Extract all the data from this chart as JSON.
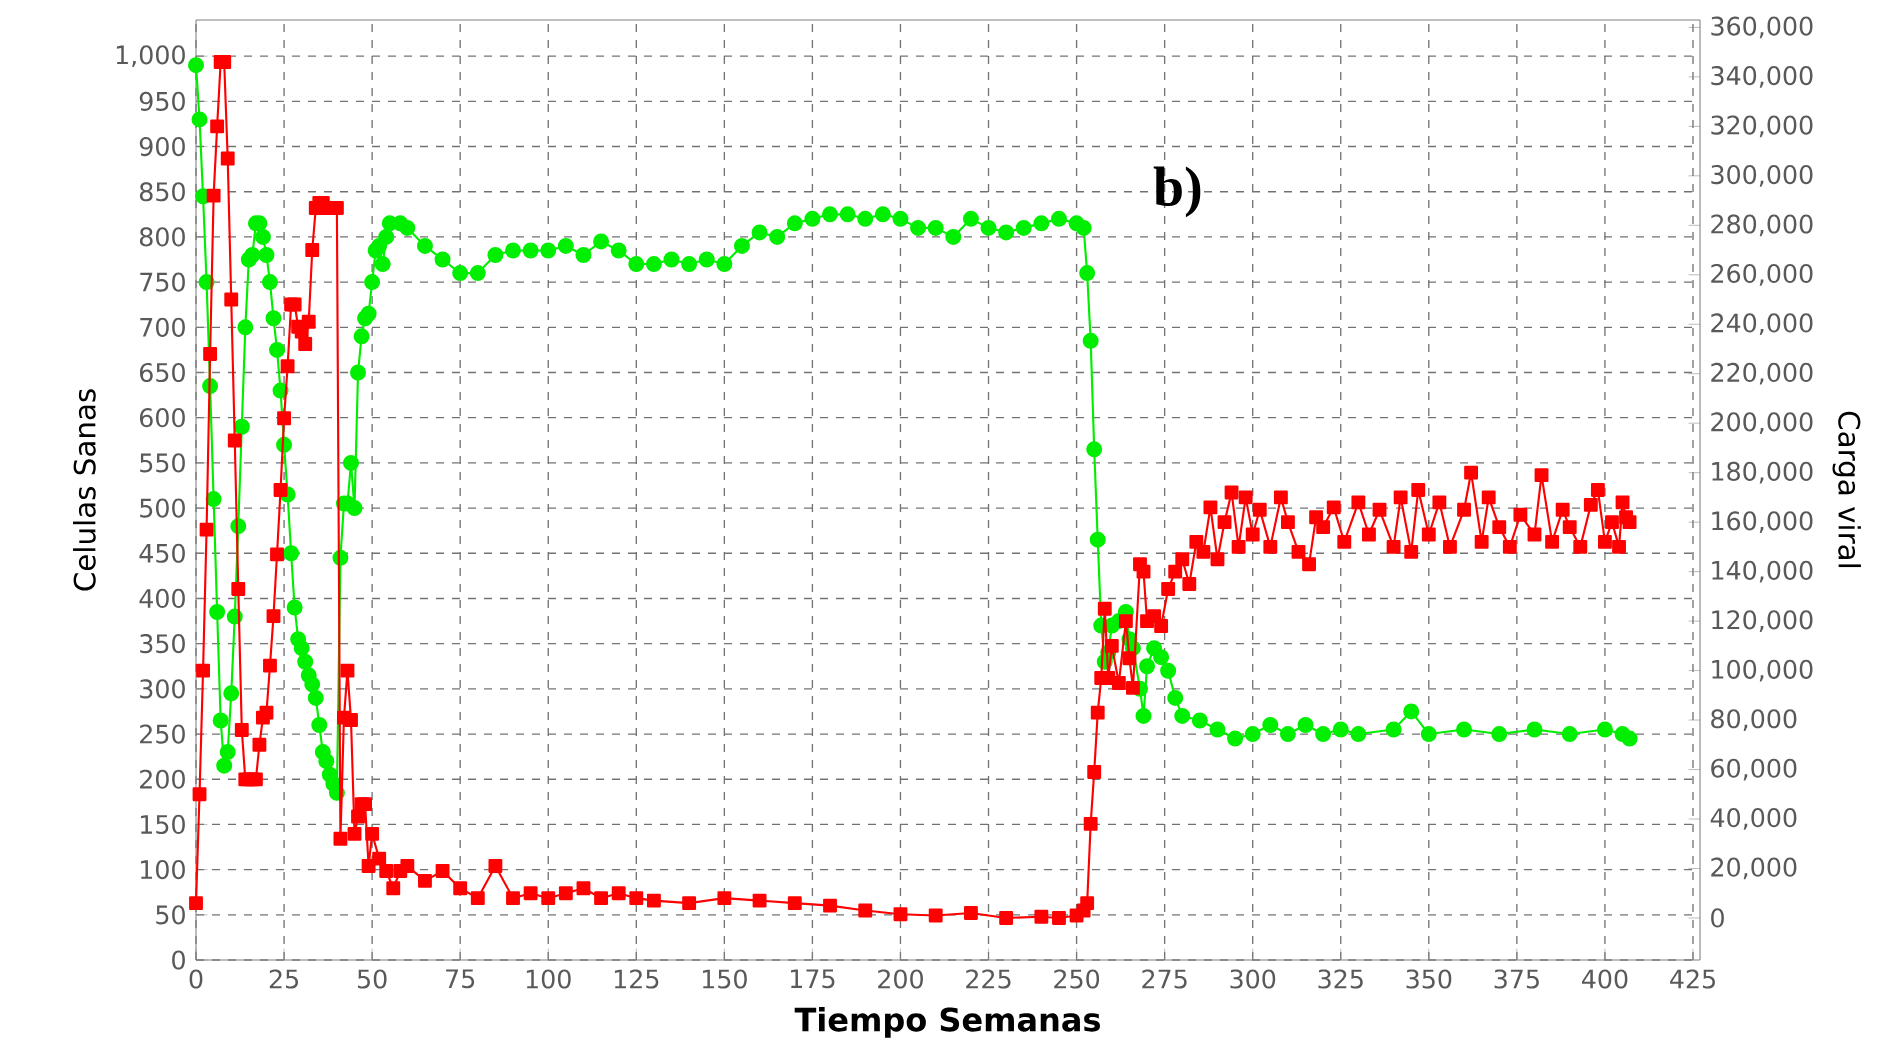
{
  "chart_data": {
    "type": "line",
    "xlabel": "Tiempo Semanas",
    "ylabel": "Celulas Sanas",
    "y2label": "Carga viral",
    "annotations": [
      "b)"
    ],
    "xlim": [
      0,
      427
    ],
    "xticks": [
      0,
      25,
      50,
      75,
      100,
      125,
      150,
      175,
      200,
      225,
      250,
      275,
      300,
      325,
      350,
      375,
      400,
      425
    ],
    "ylim": [
      0,
      1040
    ],
    "yticks": [
      0,
      50,
      100,
      150,
      200,
      250,
      300,
      350,
      400,
      450,
      500,
      550,
      600,
      650,
      700,
      750,
      800,
      850,
      900,
      950,
      {
        "value": 1000,
        "label": "1,000"
      }
    ],
    "y2lim": [
      -17000,
      363000
    ],
    "y2ticks": [
      0,
      {
        "value": 20000,
        "label": "20,000"
      },
      {
        "value": 40000,
        "label": "40,000"
      },
      {
        "value": 60000,
        "label": "60,000"
      },
      {
        "value": 80000,
        "label": "80,000"
      },
      {
        "value": 100000,
        "label": "100,000"
      },
      {
        "value": 120000,
        "label": "120,000"
      },
      {
        "value": 140000,
        "label": "140,000"
      },
      {
        "value": 160000,
        "label": "160,000"
      },
      {
        "value": 180000,
        "label": "180,000"
      },
      {
        "value": 200000,
        "label": "200,000"
      },
      {
        "value": 220000,
        "label": "220,000"
      },
      {
        "value": 240000,
        "label": "240,000"
      },
      {
        "value": 260000,
        "label": "260,000"
      },
      {
        "value": 280000,
        "label": "280,000"
      },
      {
        "value": 300000,
        "label": "300,000"
      },
      {
        "value": 320000,
        "label": "320,000"
      },
      {
        "value": 340000,
        "label": "340,000"
      },
      {
        "value": 360000,
        "label": "360,000"
      }
    ],
    "grid": true,
    "line_style": "solid",
    "series": [
      {
        "color": "#00ee00",
        "marker": "circle",
        "axis": "y",
        "x": [
          0,
          1,
          2,
          3,
          4,
          5,
          6,
          7,
          8,
          9,
          10,
          11,
          12,
          13,
          14,
          15,
          16,
          17,
          18,
          19,
          20,
          21,
          22,
          23,
          24,
          25,
          26,
          27,
          28,
          29,
          30,
          31,
          32,
          33,
          34,
          35,
          36,
          37,
          38,
          39,
          40,
          41,
          42,
          43,
          44,
          45,
          46,
          47,
          48,
          49,
          50,
          51,
          52,
          53,
          54,
          55,
          58,
          60,
          65,
          70,
          75,
          80,
          85,
          90,
          95,
          100,
          105,
          110,
          115,
          120,
          125,
          130,
          135,
          140,
          145,
          150,
          155,
          160,
          165,
          170,
          175,
          180,
          185,
          190,
          195,
          200,
          205,
          210,
          215,
          220,
          225,
          230,
          235,
          240,
          245,
          250,
          252,
          253,
          254,
          255,
          256,
          257,
          258,
          259,
          260,
          262,
          264,
          265,
          266,
          268,
          269,
          270,
          272,
          274,
          276,
          278,
          280,
          285,
          290,
          295,
          300,
          305,
          310,
          315,
          320,
          325,
          330,
          340,
          345,
          350,
          360,
          370,
          380,
          390,
          400,
          405,
          407
        ],
        "values": [
          990,
          930,
          845,
          750,
          635,
          510,
          385,
          265,
          215,
          230,
          295,
          380,
          480,
          590,
          700,
          775,
          780,
          815,
          815,
          800,
          780,
          750,
          710,
          675,
          630,
          570,
          515,
          450,
          390,
          355,
          345,
          330,
          315,
          305,
          290,
          260,
          230,
          220,
          205,
          195,
          185,
          445,
          505,
          505,
          550,
          500,
          650,
          690,
          710,
          715,
          750,
          785,
          790,
          770,
          800,
          815,
          815,
          810,
          790,
          775,
          760,
          760,
          780,
          785,
          785,
          785,
          790,
          780,
          795,
          785,
          770,
          770,
          775,
          770,
          775,
          770,
          790,
          805,
          800,
          815,
          820,
          825,
          825,
          820,
          825,
          820,
          810,
          810,
          800,
          820,
          810,
          805,
          810,
          815,
          820,
          815,
          810,
          760,
          685,
          565,
          465,
          370,
          330,
          340,
          370,
          375,
          385,
          355,
          345,
          300,
          270,
          325,
          345,
          335,
          320,
          290,
          270,
          265,
          255,
          245,
          250,
          260,
          250,
          260,
          250,
          255,
          250,
          255,
          275,
          250,
          255,
          250,
          255,
          250,
          255,
          250,
          245
        ]
      },
      {
        "color": "#ff0000",
        "marker": "square",
        "axis": "y2",
        "x": [
          0,
          1,
          2,
          3,
          4,
          5,
          6,
          7,
          8,
          9,
          10,
          11,
          12,
          13,
          14,
          15,
          16,
          17,
          18,
          19,
          20,
          21,
          22,
          23,
          24,
          25,
          26,
          27,
          28,
          29,
          30,
          31,
          32,
          33,
          34,
          35,
          36,
          37,
          38,
          39,
          40,
          41,
          42,
          43,
          44,
          45,
          46,
          47,
          48,
          49,
          50,
          52,
          54,
          56,
          58,
          60,
          65,
          70,
          75,
          80,
          85,
          90,
          95,
          100,
          105,
          110,
          115,
          120,
          125,
          130,
          140,
          150,
          160,
          170,
          180,
          190,
          200,
          210,
          220,
          230,
          240,
          245,
          250,
          252,
          253,
          254,
          255,
          256,
          257,
          258,
          259,
          260,
          262,
          264,
          265,
          266,
          268,
          269,
          270,
          272,
          274,
          276,
          278,
          280,
          282,
          284,
          286,
          288,
          290,
          292,
          294,
          296,
          298,
          300,
          302,
          305,
          308,
          310,
          313,
          316,
          318,
          320,
          323,
          326,
          330,
          333,
          336,
          340,
          342,
          345,
          347,
          350,
          353,
          356,
          360,
          362,
          365,
          367,
          370,
          373,
          376,
          380,
          382,
          385,
          388,
          390,
          393,
          396,
          398,
          400,
          402,
          404,
          405,
          406,
          407
        ],
        "values": [
          6000,
          50000,
          100000,
          157000,
          228000,
          292000,
          320000,
          346000,
          346000,
          307000,
          250000,
          193000,
          133000,
          76000,
          56000,
          56000,
          56000,
          56000,
          70000,
          81000,
          83000,
          102000,
          122000,
          147000,
          173000,
          202000,
          223000,
          248000,
          248000,
          239000,
          237000,
          232000,
          241000,
          270000,
          287000,
          289000,
          289000,
          287000,
          287000,
          287000,
          287000,
          32000,
          81000,
          100000,
          80000,
          34000,
          41000,
          46000,
          46000,
          21000,
          34000,
          24000,
          19000,
          12000,
          19000,
          21000,
          15000,
          19000,
          12000,
          8000,
          21000,
          8000,
          10000,
          8000,
          10000,
          12000,
          8000,
          10000,
          8000,
          7000,
          6000,
          8000,
          7000,
          6000,
          5000,
          3000,
          1500,
          1000,
          2000,
          0,
          500,
          0,
          1000,
          3000,
          6000,
          38000,
          59000,
          83000,
          97000,
          125000,
          97000,
          110000,
          95000,
          120000,
          105000,
          93000,
          143000,
          140000,
          120000,
          122000,
          118000,
          133000,
          140000,
          145000,
          135000,
          152000,
          148000,
          166000,
          145000,
          160000,
          172000,
          150000,
          170000,
          155000,
          165000,
          150000,
          170000,
          160000,
          148000,
          143000,
          162000,
          158000,
          166000,
          152000,
          168000,
          155000,
          165000,
          150000,
          170000,
          148000,
          173000,
          155000,
          168000,
          150000,
          165000,
          180000,
          152000,
          170000,
          158000,
          150000,
          163000,
          155000,
          179000,
          152000,
          165000,
          158000,
          150000,
          167000,
          173000,
          152000,
          160000,
          150000,
          168000,
          162000,
          160000
        ]
      }
    ]
  }
}
